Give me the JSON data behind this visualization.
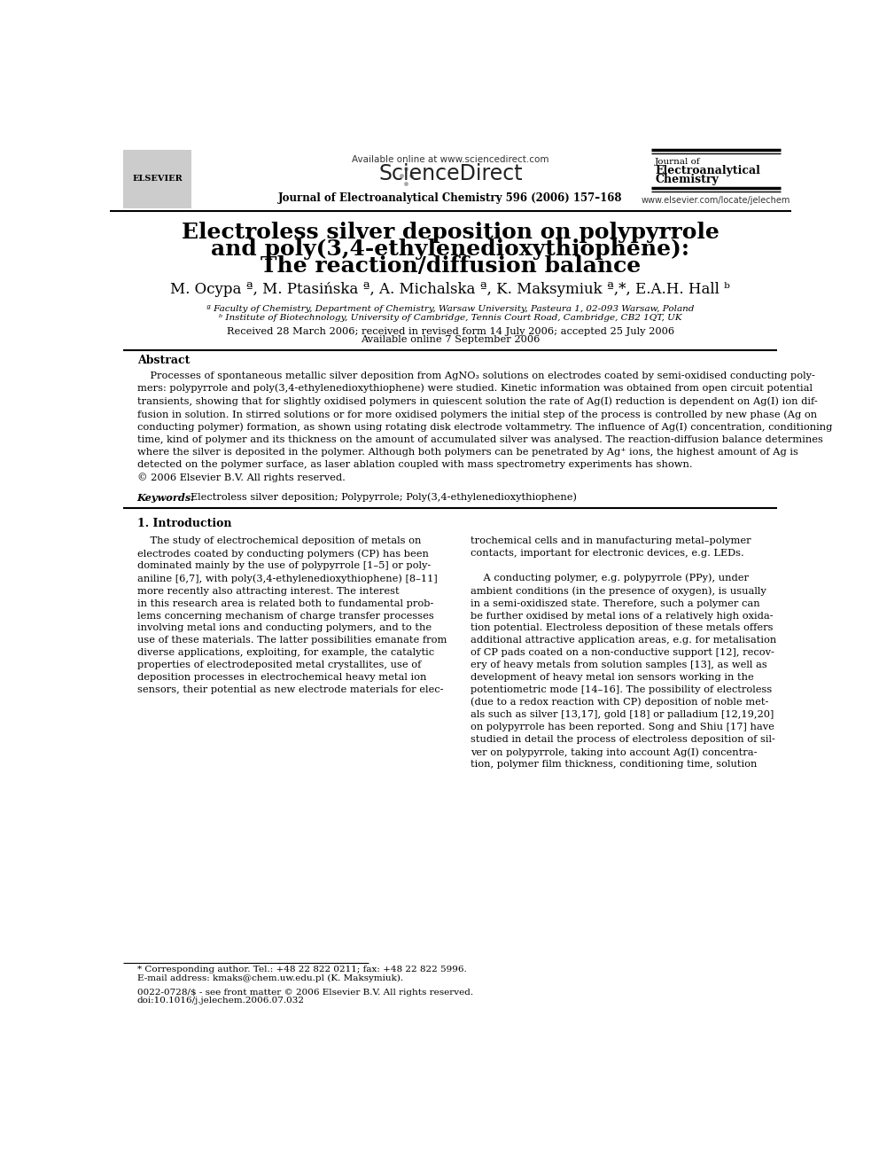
{
  "bg_color": "#ffffff",
  "header_available_online": "Available online at www.sciencedirect.com",
  "journal_name_top_right_line1": "Journal of",
  "journal_name_top_right_line2": "Electroanalytical",
  "journal_name_top_right_line3": "Chemistry",
  "journal_citation": "Journal of Electroanalytical Chemistry 596 (2006) 157–168",
  "journal_url": "www.elsevier.com/locate/jelechem",
  "article_title_line1": "Electroless silver deposition on polypyrrole",
  "article_title_line2": "and poly(3,4-ethylenedioxythiophene):",
  "article_title_line3": "The reaction/diffusion balance",
  "authors": "M. Ocypa ª, M. Ptasińska ª, A. Michalska ª, K. Maksymiuk ª,*, E.A.H. Hall ᵇ",
  "affil_a": "ª Faculty of Chemistry, Department of Chemistry, Warsaw University, Pasteura 1, 02-093 Warsaw, Poland",
  "affil_b": "ᵇ Institute of Biotechnology, University of Cambridge, Tennis Court Road, Cambridge, CB2 1QT, UK",
  "received_line1": "Received 28 March 2006; received in revised form 14 July 2006; accepted 25 July 2006",
  "received_line2": "Available online 7 September 2006",
  "abstract_heading": "Abstract",
  "keywords_label": "Keywords:",
  "keywords_text": "Electroless silver deposition; Polypyrrole; Poly(3,4-ethylenedioxythiophene)",
  "section1_heading": "1. Introduction",
  "footnote_star": "* Corresponding author. Tel.: +48 22 822 0211; fax: +48 22 822 5996.",
  "footnote_email": "E-mail address: kmaks@chem.uw.edu.pl (K. Maksymiuk).",
  "footer_issn": "0022-0728/$ - see front matter © 2006 Elsevier B.V. All rights reserved.",
  "footer_doi": "doi:10.1016/j.jelechem.2006.07.032"
}
